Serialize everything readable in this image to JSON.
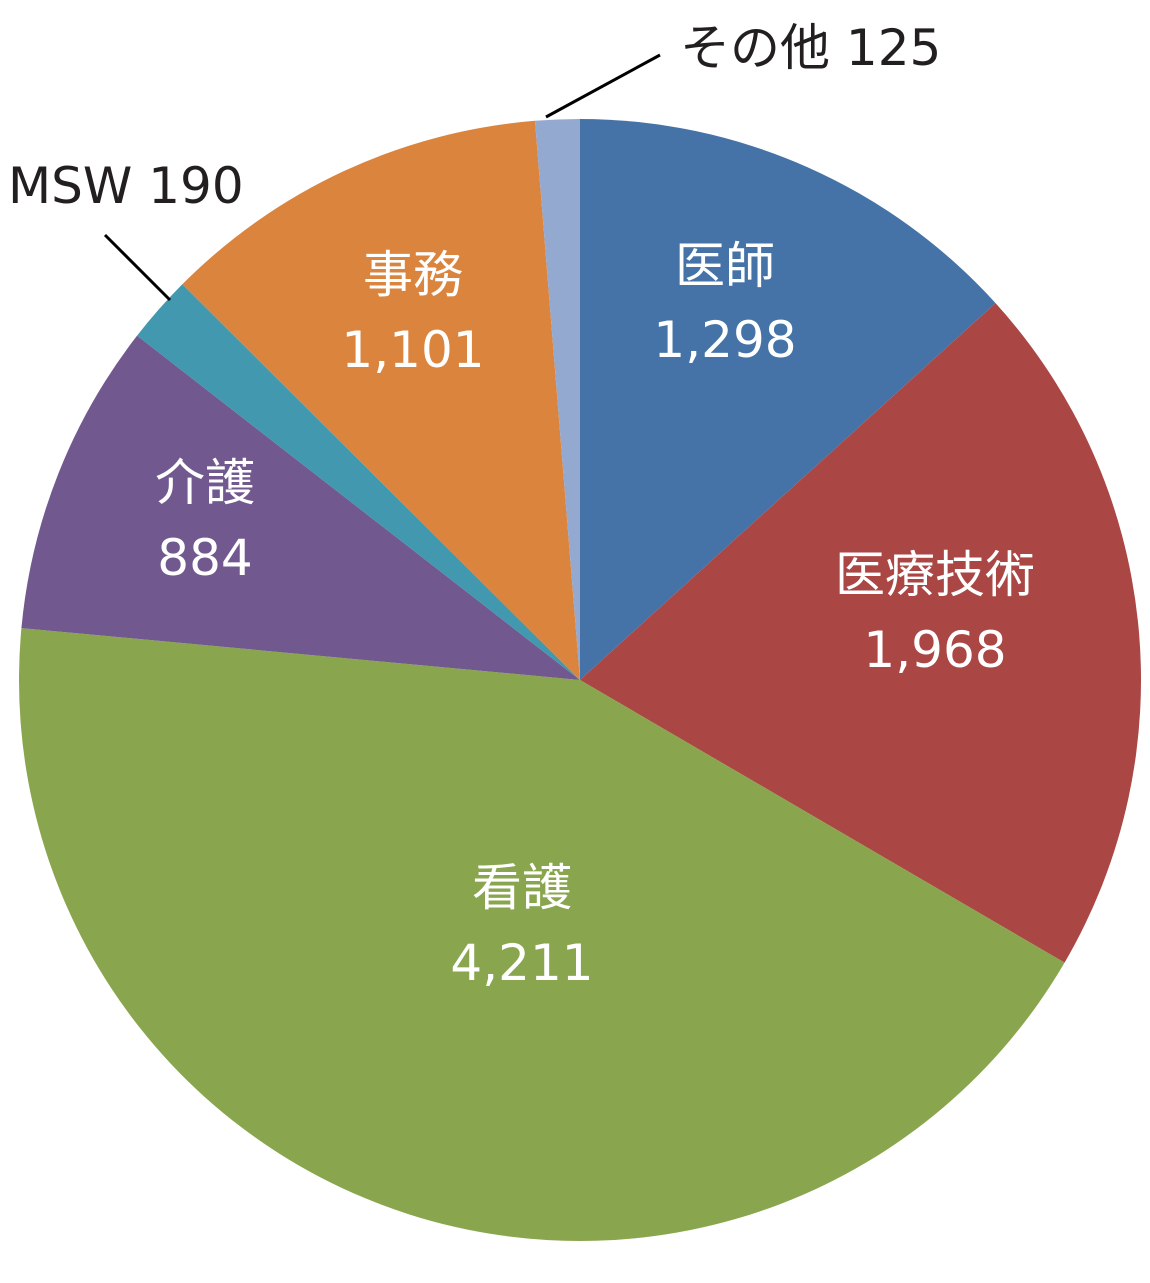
{
  "chart_data": {
    "type": "pie",
    "title": "",
    "start_angle": "top",
    "direction": "clockwise",
    "slices": [
      {
        "label": "医師",
        "value": 1298,
        "value_text": "1,298",
        "color": "#4673a7"
      },
      {
        "label": "医療技術",
        "value": 1968,
        "value_text": "1,968",
        "color": "#aa4644"
      },
      {
        "label": "看護",
        "value": 4211,
        "value_text": "4,211",
        "color": "#89a54e"
      },
      {
        "label": "介護",
        "value": 884,
        "value_text": "884",
        "color": "#71588f"
      },
      {
        "label": "MSW",
        "value": 190,
        "value_text": "190",
        "color": "#4198af"
      },
      {
        "label": "事務",
        "value": 1101,
        "value_text": "1,101",
        "color": "#db843d"
      },
      {
        "label": "その他",
        "value": 125,
        "value_text": "125",
        "color": "#93a9cf"
      }
    ]
  }
}
